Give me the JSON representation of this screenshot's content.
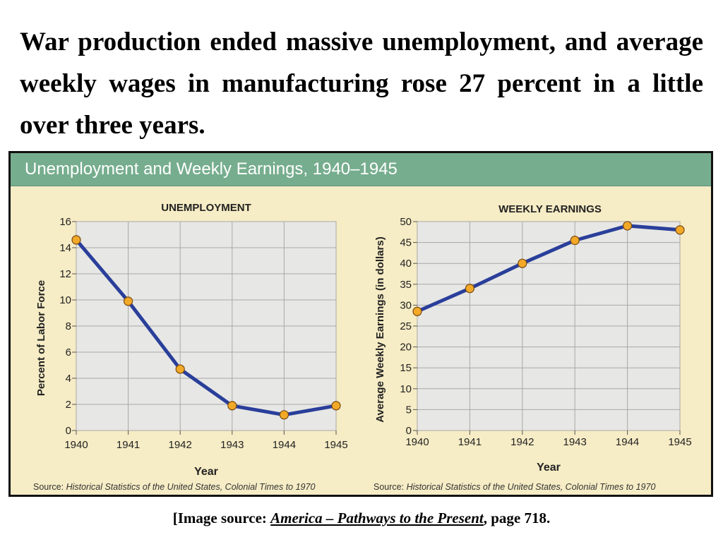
{
  "headline": "War production ended massive unemployment, and average weekly wages in manufacturing rose 27 percent in a little over three years.",
  "panel": {
    "title": "Unemployment and Weekly Earnings, 1940–1945"
  },
  "chart_data": [
    {
      "type": "line",
      "title": "UNEMPLOYMENT",
      "xlabel": "Year",
      "ylabel": "Percent of Labor Force",
      "x": [
        "1940",
        "1941",
        "1942",
        "1943",
        "1944",
        "1945"
      ],
      "series": [
        {
          "values": [
            14.6,
            9.9,
            4.7,
            1.9,
            1.2,
            1.9
          ]
        }
      ],
      "yticks": [
        "0",
        "2",
        "4",
        "6",
        "8",
        "10",
        "12",
        "14",
        "16"
      ],
      "ylim": [
        0,
        16
      ],
      "grid": true,
      "source_label": "Source:",
      "source_text": "Historical Statistics of the United States, Colonial Times to 1970"
    },
    {
      "type": "line",
      "title": "WEEKLY EARNINGS",
      "xlabel": "Year",
      "ylabel": "Average Weekly Earnings (in dollars)",
      "x": [
        "1940",
        "1941",
        "1942",
        "1943",
        "1944",
        "1945"
      ],
      "series": [
        {
          "values": [
            28.5,
            34,
            40,
            45.5,
            49,
            48
          ]
        }
      ],
      "yticks": [
        "0",
        "5",
        "10",
        "15",
        "20",
        "25",
        "30",
        "35",
        "40",
        "45",
        "50"
      ],
      "ylim": [
        0,
        50
      ],
      "grid": true,
      "source_label": "Source:",
      "source_text": "Historical Statistics of the United States, Colonial Times to 1970"
    }
  ],
  "colors": {
    "line": "#2a3f9a",
    "marker": "#f2a928",
    "plot_bg": "#e7e7e5",
    "title_band": "#76ad8e",
    "panel_bg": "#f6ecc5"
  },
  "caption": {
    "prefix": "[Image source: ",
    "book": "America – Pathways to the Present",
    "suffix": ", page 718."
  }
}
